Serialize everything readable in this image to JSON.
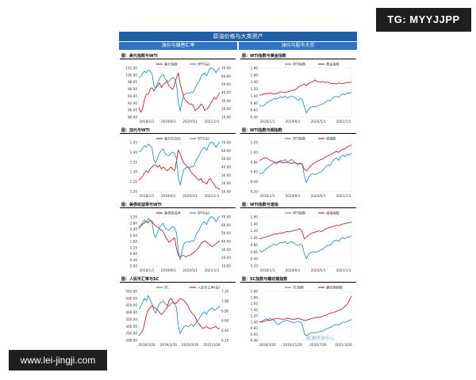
{
  "watermark_tg": "TG: MYYJJPP",
  "watermark_site": "www.lei-jingji.com",
  "header": {
    "title": "原油价格与大类资产",
    "left_section": "油价与偏替汇率",
    "right_section": "油价与股市大宗"
  },
  "footer_mark": "能源研发中心",
  "colors": {
    "red": "#c0202a",
    "blue": "#2a8fc8"
  },
  "chart_data": [
    {
      "type": "line",
      "title": "图：美元指数与WTI",
      "x_ticks": [
        "2018/1/1",
        "2019/9/1",
        "2020/5/1",
        "2021/1/1"
      ],
      "y_left": {
        "ticks": [
          "102.00",
          "100.00",
          "98.00",
          "96.00",
          "94.00",
          "92.00",
          "90.00",
          "88.00"
        ],
        "lim": [
          88,
          103
        ]
      },
      "y_right": {
        "ticks": [
          "70.00",
          "60.00",
          "50.00",
          "40.00",
          "30.00",
          "20.00",
          "10.00"
        ],
        "lim": [
          10,
          72
        ]
      },
      "series": [
        {
          "name": "美元指数",
          "axis": "left",
          "color": "red",
          "values": [
            91,
            89.5,
            90.5,
            93.5,
            95,
            95,
            96.5,
            97,
            96,
            97,
            97.5,
            98.5,
            97,
            98,
            98.5,
            99,
            97.5,
            97,
            96.5,
            98,
            100,
            101.5,
            98,
            96,
            94,
            93,
            92.5,
            92,
            92,
            91.5,
            90,
            90.5,
            91,
            92,
            91.5,
            90,
            90.5,
            91,
            92,
            93,
            94,
            93.5,
            94.5,
            95.5
          ]
        },
        {
          "name": "WTI(右)",
          "axis": "right",
          "color": "blue",
          "values": [
            60,
            61,
            65,
            68,
            66,
            70,
            68,
            65,
            50,
            46,
            53,
            59,
            62,
            64,
            58,
            56,
            55,
            58,
            60,
            58,
            52,
            28,
            18,
            30,
            38,
            40,
            41,
            40,
            42,
            41,
            47,
            52,
            55,
            61,
            64,
            66,
            62,
            68,
            72,
            72,
            70,
            66,
            70,
            73
          ]
        }
      ]
    },
    {
      "type": "line",
      "title": "图：WTI指数与黄金指数",
      "x_ticks": [
        "2016/1/1",
        "2019/9/1",
        "2020/5/1",
        "2021/1/1"
      ],
      "y_left": {
        "ticks": [
          "1.80",
          "1.60",
          "1.40",
          "1.20",
          "1.00",
          "0.80",
          "0.60",
          "0.40"
        ],
        "lim": [
          0.4,
          1.85
        ]
      },
      "y_right": null,
      "series": [
        {
          "name": "WTI指数",
          "axis": "left",
          "color": "blue",
          "values": [
            0.76,
            0.72,
            0.74,
            0.8,
            0.85,
            0.88,
            0.92,
            0.95,
            0.93,
            0.97,
            1.0,
            0.98,
            1.02,
            0.97,
            1.0,
            1.03,
            1.0,
            0.96,
            0.9,
            0.95,
            0.93,
            0.7,
            0.52,
            0.64,
            0.7,
            0.72,
            0.7,
            0.73,
            0.75,
            0.78,
            0.8,
            0.85,
            0.9,
            0.88,
            0.95,
            1.0,
            1.02,
            0.98,
            1.05,
            1.1,
            1.06,
            1.12,
            1.1,
            1.14
          ]
        },
        {
          "name": "黄金指数",
          "axis": "left",
          "color": "red",
          "values": [
            1.05,
            1.06,
            1.08,
            1.1,
            1.09,
            1.12,
            1.1,
            1.08,
            1.1,
            1.12,
            1.15,
            1.14,
            1.13,
            1.15,
            1.16,
            1.18,
            1.2,
            1.22,
            1.28,
            1.32,
            1.35,
            1.38,
            1.33,
            1.4,
            1.42,
            1.45,
            1.5,
            1.46,
            1.44,
            1.43,
            1.45,
            1.42,
            1.44,
            1.4,
            1.39,
            1.4,
            1.38,
            1.41,
            1.4,
            1.39,
            1.41,
            1.43,
            1.42,
            1.44
          ]
        }
      ]
    },
    {
      "type": "line",
      "title": "图：加元与WTI",
      "x_ticks": [
        "2018/1/1",
        "2019/9/1",
        "2020/5/1",
        "2021/1/1"
      ],
      "y_left": {
        "ticks": [
          "1.45",
          "1.40",
          "1.35",
          "1.30",
          "1.25",
          "1.20"
        ],
        "lim": [
          1.2,
          1.46
        ]
      },
      "y_right": {
        "ticks": [
          "70.00",
          "60.00",
          "50.00",
          "40.00",
          "30.00",
          "20.00",
          "10.00"
        ],
        "lim": [
          10,
          72
        ]
      },
      "series": [
        {
          "name": "美元兑加元",
          "axis": "left",
          "color": "red",
          "values": [
            1.26,
            1.27,
            1.28,
            1.3,
            1.31,
            1.3,
            1.32,
            1.33,
            1.34,
            1.34,
            1.33,
            1.34,
            1.32,
            1.33,
            1.32,
            1.31,
            1.32,
            1.33,
            1.32,
            1.31,
            1.36,
            1.42,
            1.4,
            1.37,
            1.35,
            1.34,
            1.33,
            1.32,
            1.3,
            1.29,
            1.28,
            1.27,
            1.26,
            1.27,
            1.25,
            1.25,
            1.24,
            1.26,
            1.27,
            1.25,
            1.24,
            1.22,
            1.22,
            1.21
          ]
        },
        {
          "name": "WTI(右)",
          "axis": "right",
          "color": "blue",
          "values": [
            60,
            61,
            65,
            68,
            66,
            70,
            68,
            65,
            50,
            46,
            53,
            59,
            62,
            64,
            58,
            56,
            55,
            58,
            60,
            58,
            52,
            28,
            18,
            30,
            38,
            40,
            41,
            40,
            42,
            41,
            47,
            52,
            55,
            61,
            64,
            66,
            62,
            68,
            72,
            72,
            70,
            66,
            70,
            73
          ]
        }
      ]
    },
    {
      "type": "line",
      "title": "图：WTI指数与铜指数",
      "x_ticks": [
        "2016/1/1",
        "2019/9/1",
        "2020/5/1",
        "2021/1/1"
      ],
      "y_left": {
        "ticks": [
          "1.20",
          "1.00",
          "0.80",
          "0.60",
          "0.40",
          "0.20"
        ],
        "lim": [
          0.2,
          1.3
        ]
      },
      "y_right": null,
      "series": [
        {
          "name": "WTI指数",
          "axis": "left",
          "color": "blue",
          "values": [
            0.62,
            0.6,
            0.64,
            0.7,
            0.74,
            0.78,
            0.82,
            0.85,
            0.82,
            0.86,
            0.9,
            0.88,
            0.92,
            0.86,
            0.89,
            0.92,
            0.88,
            0.84,
            0.8,
            0.84,
            0.82,
            0.55,
            0.4,
            0.52,
            0.58,
            0.6,
            0.58,
            0.6,
            0.63,
            0.66,
            0.7,
            0.75,
            0.8,
            0.78,
            0.86,
            0.92,
            0.95,
            0.9,
            0.98,
            1.02,
            0.98,
            1.04,
            1.02,
            1.06
          ]
        },
        {
          "name": "铜指数",
          "axis": "left",
          "color": "red",
          "values": [
            0.9,
            0.92,
            0.95,
            0.96,
            0.93,
            0.9,
            0.88,
            0.86,
            0.85,
            0.87,
            0.86,
            0.84,
            0.85,
            0.86,
            0.84,
            0.83,
            0.85,
            0.84,
            0.82,
            0.83,
            0.8,
            0.7,
            0.66,
            0.72,
            0.78,
            0.82,
            0.85,
            0.88,
            0.9,
            0.92,
            0.94,
            0.98,
            1.0,
            1.02,
            1.05,
            1.08,
            1.1,
            1.08,
            1.12,
            1.15,
            1.16,
            1.2,
            1.22,
            1.24
          ]
        }
      ]
    },
    {
      "type": "line",
      "title": "图：美债收益率与WTI",
      "x_ticks": [
        "2018/1/1",
        "2019/9/1",
        "2020/5/1",
        "2021/1/1"
      ],
      "y_left": {
        "ticks": [
          "3.20",
          "2.80",
          "2.40",
          "2.00",
          "1.60",
          "1.20",
          "0.80",
          "0.40",
          "0.00"
        ],
        "lim": [
          0,
          3.3
        ]
      },
      "y_right": {
        "ticks": [
          "70.00",
          "60.00",
          "50.00",
          "40.00",
          "30.00",
          "20.00",
          "10.00"
        ],
        "lim": [
          10,
          72
        ]
      },
      "series": [
        {
          "name": "美债收益率",
          "axis": "left",
          "color": "red",
          "values": [
            2.5,
            2.7,
            2.8,
            2.9,
            3.0,
            2.9,
            3.1,
            3.0,
            2.8,
            2.7,
            2.6,
            2.5,
            2.4,
            2.3,
            2.0,
            1.8,
            1.6,
            1.7,
            1.8,
            1.9,
            1.2,
            0.7,
            0.6,
            0.7,
            0.7,
            0.6,
            0.7,
            0.7,
            0.8,
            0.9,
            1.0,
            1.1,
            1.3,
            1.5,
            1.6,
            1.7,
            1.6,
            1.5,
            1.4,
            1.3,
            1.4,
            1.5,
            1.6,
            1.7
          ]
        },
        {
          "name": "WTI(右)",
          "axis": "right",
          "color": "blue",
          "values": [
            60,
            61,
            65,
            68,
            66,
            70,
            68,
            65,
            50,
            46,
            53,
            59,
            62,
            64,
            58,
            56,
            55,
            58,
            60,
            58,
            52,
            28,
            18,
            30,
            38,
            40,
            41,
            40,
            42,
            41,
            47,
            52,
            55,
            61,
            64,
            66,
            62,
            68,
            72,
            72,
            70,
            66,
            70,
            73
          ]
        }
      ]
    },
    {
      "type": "line",
      "title": "图：WTI指数与道指",
      "x_ticks": [
        "2016/1/1",
        "2019/9/1",
        "2020/5/1",
        "2021/1/1"
      ],
      "y_left": {
        "ticks": [
          "1.60",
          "1.40",
          "1.20",
          "1.00",
          "0.80",
          "0.60",
          "0.40",
          "0.20"
        ],
        "lim": [
          0.2,
          1.65
        ]
      },
      "y_right": null,
      "series": [
        {
          "name": "WTI指数",
          "axis": "left",
          "color": "blue",
          "values": [
            0.66,
            0.62,
            0.65,
            0.7,
            0.75,
            0.78,
            0.82,
            0.85,
            0.82,
            0.86,
            0.9,
            0.88,
            0.92,
            0.86,
            0.89,
            0.92,
            0.88,
            0.84,
            0.8,
            0.84,
            0.82,
            0.55,
            0.42,
            0.55,
            0.6,
            0.62,
            0.6,
            0.62,
            0.65,
            0.68,
            0.72,
            0.78,
            0.82,
            0.8,
            0.88,
            0.94,
            0.97,
            0.92,
            1.0,
            1.04,
            1.0,
            1.06,
            1.05,
            1.1
          ]
        },
        {
          "name": "道指指数",
          "axis": "left",
          "color": "red",
          "values": [
            1.0,
            1.02,
            1.04,
            1.06,
            1.08,
            1.1,
            1.12,
            1.15,
            1.14,
            1.16,
            1.18,
            1.17,
            1.2,
            1.22,
            1.21,
            1.23,
            1.25,
            1.26,
            1.28,
            1.3,
            1.2,
            1.0,
            1.05,
            1.12,
            1.16,
            1.18,
            1.2,
            1.22,
            1.24,
            1.22,
            1.26,
            1.3,
            1.32,
            1.34,
            1.36,
            1.38,
            1.4,
            1.39,
            1.42,
            1.44,
            1.45,
            1.47,
            1.48,
            1.5
          ]
        }
      ]
    },
    {
      "type": "line",
      "title": "图：人民币汇率与SC",
      "x_ticks": [
        "2018/3/26",
        "2019/3/26",
        "2020/3/26",
        "2021/3/26"
      ],
      "y_left": {
        "ticks": [
          "550.00",
          "500.00",
          "450.00",
          "400.00",
          "350.00",
          "300.00",
          "250.00",
          "200.00"
        ],
        "lim": [
          200,
          560
        ]
      },
      "y_right": {
        "ticks": [
          "7.20",
          "7.00",
          "6.80",
          "6.60",
          "6.40",
          "6.20"
        ],
        "lim": [
          6.2,
          7.25
        ]
      },
      "series": [
        {
          "name": "SC",
          "axis": "left",
          "color": "blue",
          "values": [
            430,
            450,
            480,
            510,
            490,
            530,
            500,
            470,
            420,
            400,
            440,
            470,
            480,
            490,
            470,
            460,
            450,
            470,
            480,
            470,
            440,
            300,
            250,
            280,
            300,
            310,
            300,
            310,
            320,
            300,
            320,
            340,
            360,
            380,
            400,
            410,
            390,
            420,
            430,
            440,
            420,
            430,
            440,
            450
          ]
        },
        {
          "name": "人民币汇率(右)",
          "axis": "right",
          "color": "red",
          "values": [
            6.3,
            6.35,
            6.4,
            6.55,
            6.75,
            6.85,
            6.9,
            6.95,
            6.9,
            6.88,
            6.85,
            6.8,
            6.75,
            6.8,
            6.85,
            6.9,
            7.05,
            7.1,
            7.05,
            6.98,
            7.0,
            7.05,
            7.1,
            7.08,
            7.05,
            7.0,
            6.95,
            6.85,
            6.8,
            6.75,
            6.7,
            6.6,
            6.55,
            6.5,
            6.45,
            6.48,
            6.5,
            6.46,
            6.45,
            6.47,
            6.48,
            6.5,
            6.45,
            6.46
          ]
        }
      ]
    },
    {
      "type": "line",
      "title": "图：SC指数与螺纹钢指数",
      "x_ticks": [
        "2018/3/26",
        "2019/11/26",
        "2020/7/26",
        "2021/3/26"
      ],
      "y_left": {
        "ticks": [
          "2.00",
          "1.80",
          "1.60",
          "1.40",
          "1.20",
          "1.00",
          "0.80",
          "0.60",
          "0.40"
        ],
        "lim": [
          0.4,
          2.0
        ]
      },
      "y_right": null,
      "series": [
        {
          "name": "SC指数",
          "axis": "left",
          "color": "blue",
          "values": [
            1.0,
            1.02,
            1.06,
            1.1,
            1.08,
            1.12,
            1.08,
            1.05,
            0.95,
            0.92,
            0.98,
            1.02,
            1.04,
            1.06,
            1.02,
            1.0,
            0.98,
            1.0,
            1.02,
            1.0,
            0.92,
            0.62,
            0.55,
            0.6,
            0.64,
            0.66,
            0.64,
            0.66,
            0.68,
            0.7,
            0.72,
            0.76,
            0.8,
            0.82,
            0.86,
            0.9,
            0.92,
            0.9,
            0.95,
            1.0,
            0.98,
            1.02,
            1.05,
            1.08
          ]
        },
        {
          "name": "螺纹钢指数",
          "axis": "left",
          "color": "red",
          "values": [
            1.0,
            1.0,
            1.02,
            1.04,
            1.06,
            1.05,
            1.08,
            1.1,
            1.12,
            1.11,
            1.1,
            1.09,
            1.1,
            1.12,
            1.11,
            1.1,
            1.08,
            1.1,
            1.12,
            1.1,
            1.08,
            1.05,
            1.06,
            1.08,
            1.1,
            1.12,
            1.14,
            1.16,
            1.15,
            1.18,
            1.2,
            1.22,
            1.25,
            1.28,
            1.3,
            1.32,
            1.35,
            1.38,
            1.4,
            1.45,
            1.5,
            1.58,
            1.7,
            1.85
          ]
        }
      ]
    }
  ]
}
